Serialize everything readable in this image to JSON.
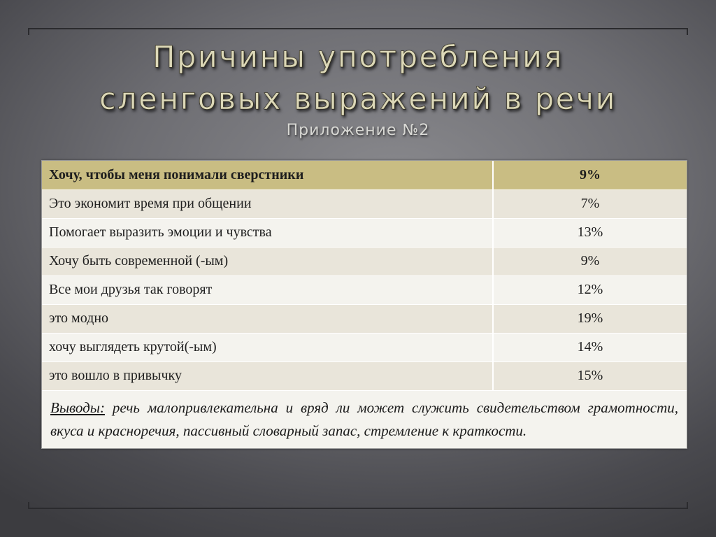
{
  "title": {
    "line1": "Причины употребления",
    "line2": "сленговых выражений в речи"
  },
  "subtitle": "Приложение №2",
  "table": {
    "header": {
      "reason": "Хочу, чтобы меня понимали сверстники",
      "percent": "9%"
    },
    "rows": [
      {
        "reason": "Это экономит время при общении",
        "percent": "7%"
      },
      {
        "reason": "Помогает выразить эмоции и чувства",
        "percent": "13%"
      },
      {
        "reason": "Хочу быть современной (-ым)",
        "percent": "9%"
      },
      {
        "reason": "Все мои друзья так говорят",
        "percent": "12%"
      },
      {
        "reason": "это модно",
        "percent": "19%"
      },
      {
        "reason": "хочу выглядеть крутой(-ым)",
        "percent": "14%"
      },
      {
        "reason": "это вошло в привычку",
        "percent": "15%"
      }
    ]
  },
  "conclusion": {
    "label": "Выводы:",
    "text": " речь малопривлекательна и вряд ли может служить свидетельством грамотности, вкуса и красноречия, пассивный словарный запас, стремление к краткости."
  },
  "colors": {
    "header_row": "#c9bd83",
    "row_odd": "#e9e5da",
    "row_even": "#f4f3ee",
    "title_text": "#dcd8b8"
  }
}
